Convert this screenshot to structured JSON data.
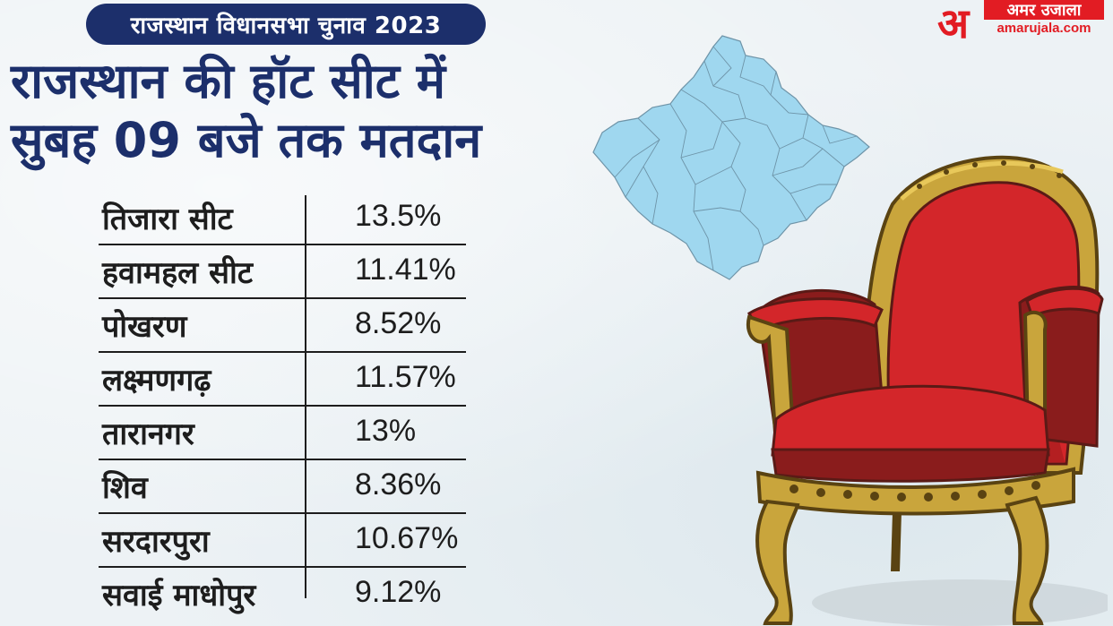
{
  "header": {
    "tag": "राजस्थान विधानसभा चुनाव 2023",
    "headline_line1": "राजस्थान की हॉट सीट में",
    "headline_line2": "सुबह 09 बजे तक मतदान"
  },
  "brand": {
    "mark": "अ",
    "name": "अमर उजाला",
    "url": "amarujala.com",
    "color": "#e21c23"
  },
  "colors": {
    "navy": "#1c2f6b",
    "map_fill": "#9fd7ef",
    "chair_red": "#d3262a",
    "chair_gold": "#c9a53c"
  },
  "turnout": [
    {
      "seat": "तिजारा सीट",
      "percent": "13.5%"
    },
    {
      "seat": "हवामहल सीट",
      "percent": "11.41%"
    },
    {
      "seat": "पोखरण",
      "percent": "8.52%"
    },
    {
      "seat": "लक्ष्मणगढ़",
      "percent": "11.57%"
    },
    {
      "seat": "तारानगर",
      "percent": "13%"
    },
    {
      "seat": "शिव",
      "percent": "8.36%"
    },
    {
      "seat": "सरदारपुरा",
      "percent": "10.67%"
    },
    {
      "seat": "सवाई माधोपुर",
      "percent": "9.12%"
    }
  ],
  "icons": {
    "map": "rajasthan-map-icon",
    "chair": "throne-chair-illustration"
  }
}
